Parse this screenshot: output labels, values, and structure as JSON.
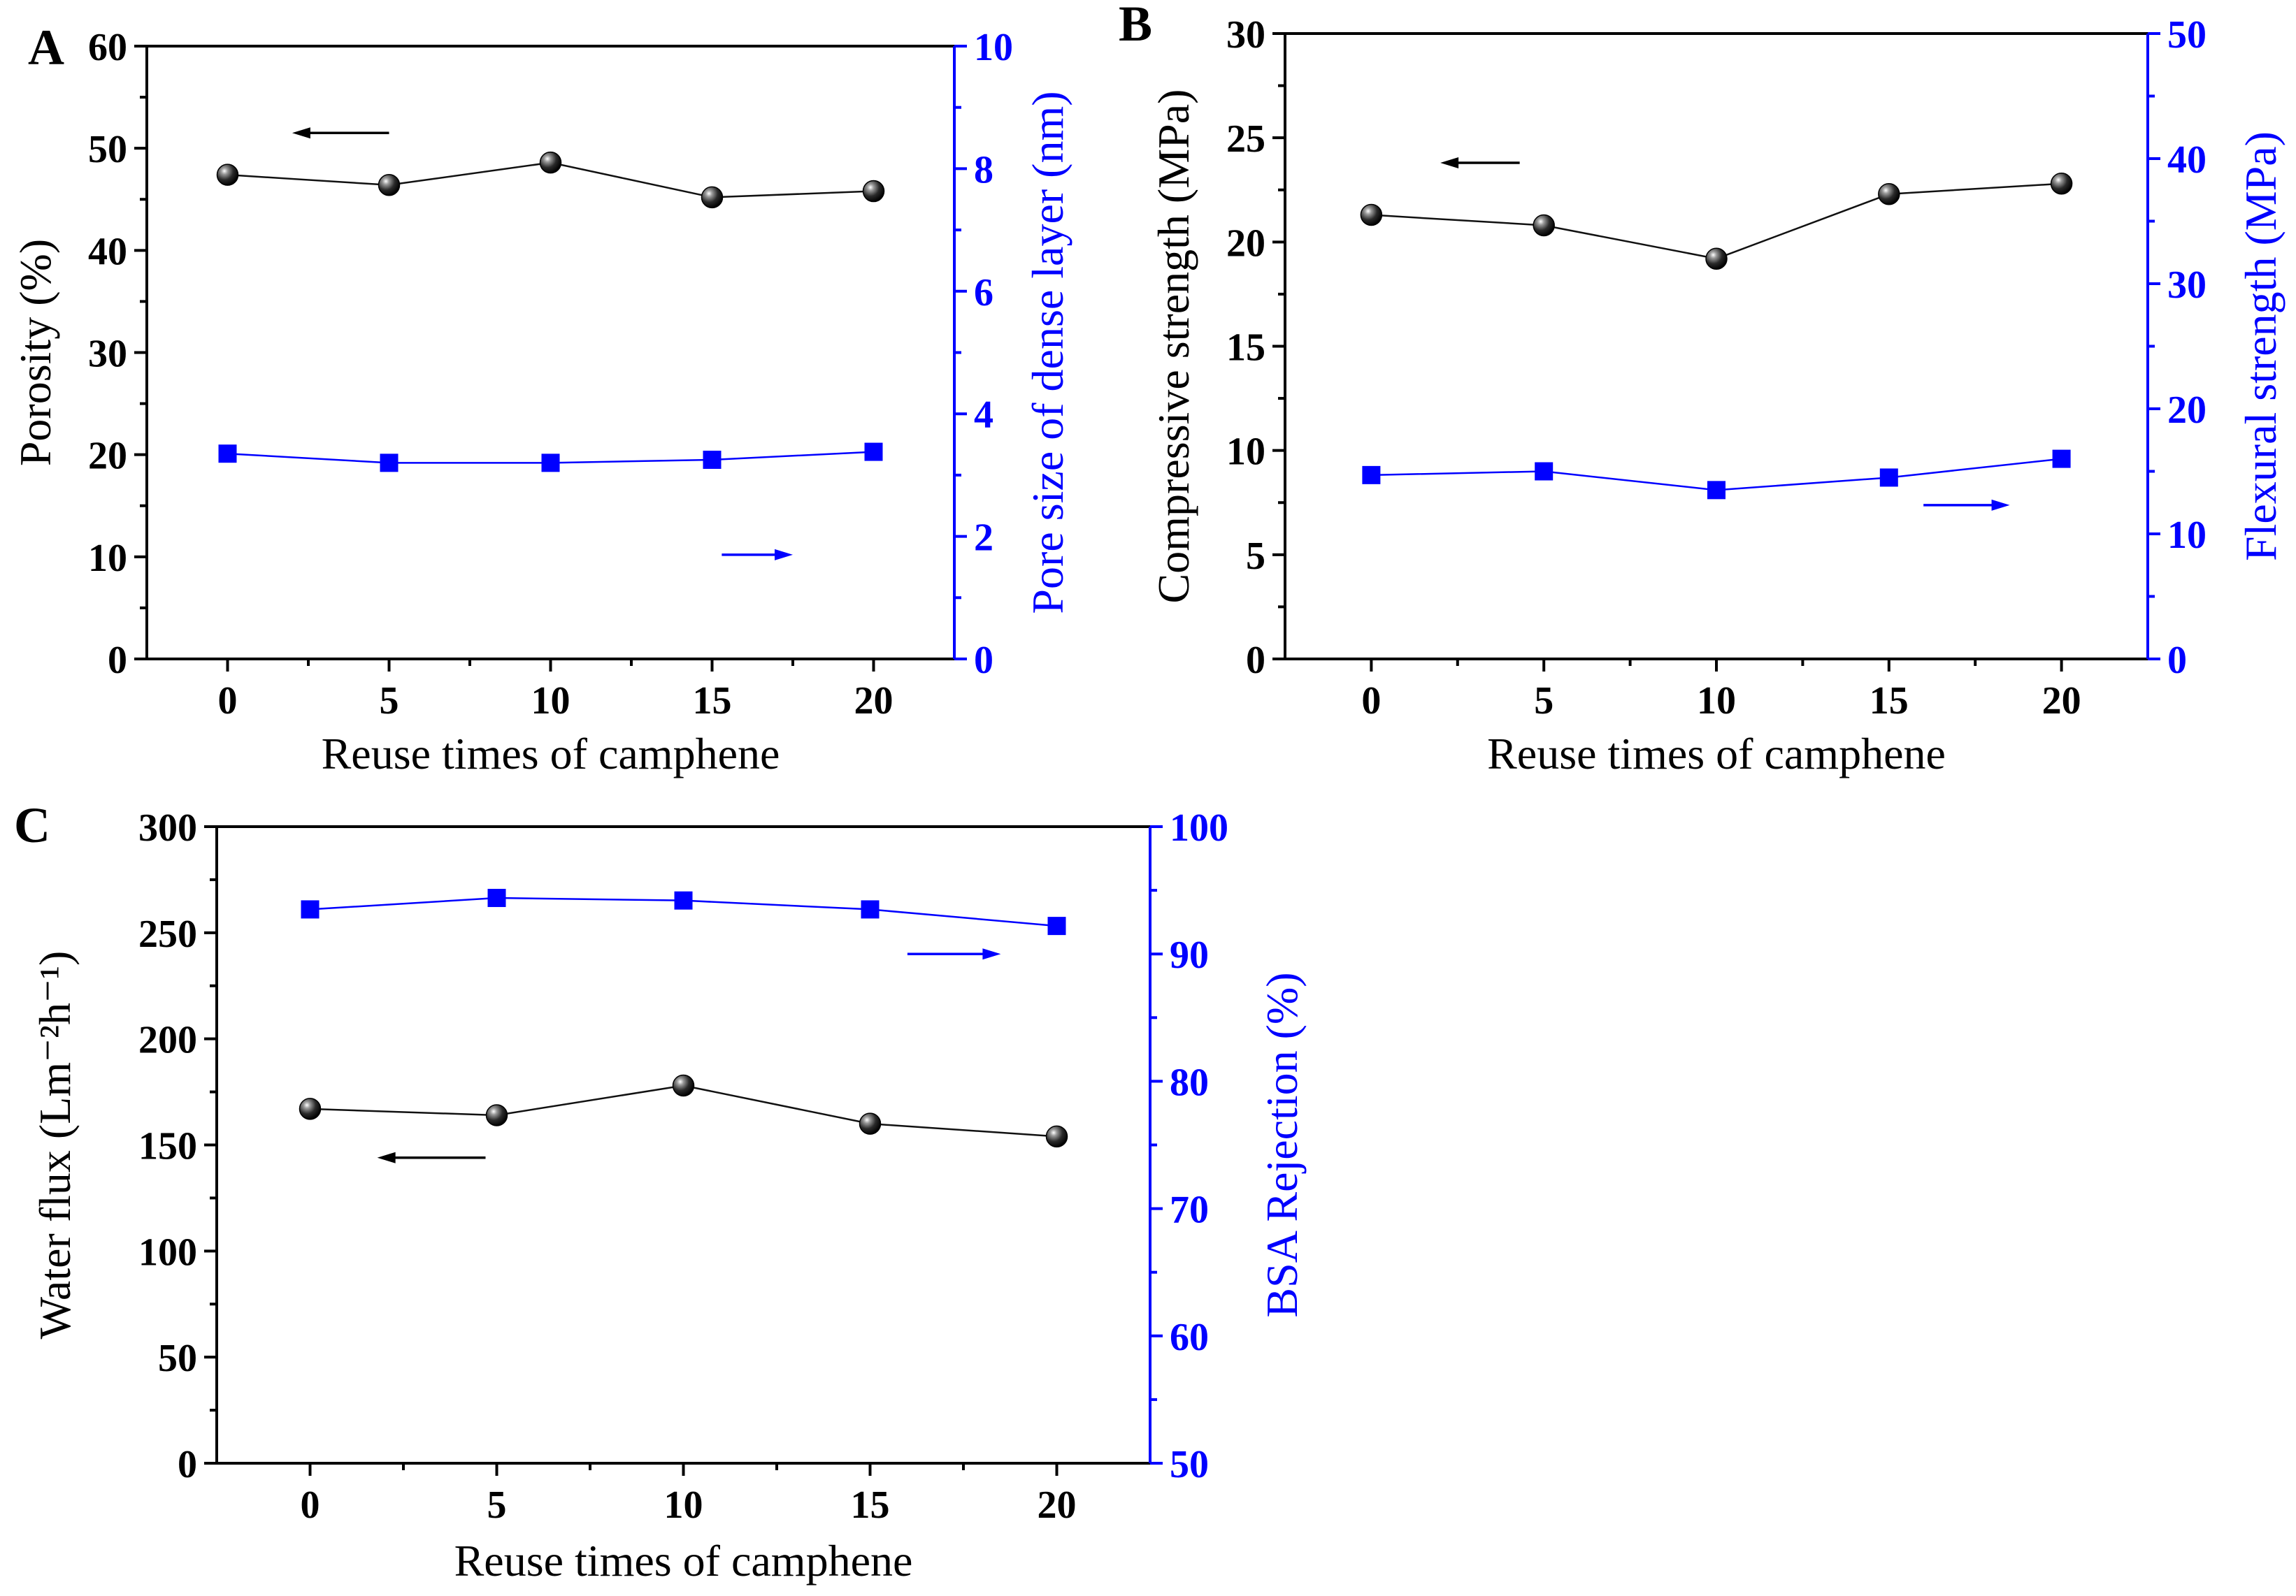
{
  "colors": {
    "left_axis": "#000000",
    "right_axis": "#0000ff",
    "marker_sphere": "#111111",
    "marker_square": "#0000ff"
  },
  "chart_data": [
    {
      "panel": "A",
      "type": "line",
      "xlabel": "Reuse times of camphene",
      "x": [
        0,
        5,
        10,
        15,
        20
      ],
      "xlim": [
        -2.5,
        22.5
      ],
      "xticks": [
        0,
        5,
        10,
        15,
        20
      ],
      "ylabel_left": "Porosity (%)",
      "ylim_left": [
        0,
        60
      ],
      "yticks_left": [
        0,
        10,
        20,
        30,
        40,
        50,
        60
      ],
      "ylabel_right": "Pore size of dense layer (nm)",
      "ylim_right": [
        0,
        10
      ],
      "yticks_right": [
        0,
        2,
        4,
        6,
        8,
        10
      ],
      "series": [
        {
          "axis": "left",
          "marker": "sphere",
          "color": "#111111",
          "values": [
            47.4,
            46.4,
            48.6,
            45.2,
            45.8
          ]
        },
        {
          "axis": "right",
          "marker": "square",
          "color": "#0000ff",
          "values": [
            3.35,
            3.2,
            3.2,
            3.25,
            3.38
          ]
        }
      ],
      "arrows": [
        {
          "direction": "left",
          "axis": "left",
          "x_from": 5,
          "x_to": 2,
          "y": 51.5
        },
        {
          "direction": "right",
          "axis": "right",
          "x_from": 15.3,
          "x_to": 17.5,
          "y": 1.7
        }
      ],
      "grid": false
    },
    {
      "panel": "B",
      "type": "line",
      "xlabel": "Reuse times of camphene",
      "x": [
        0,
        5,
        10,
        15,
        20
      ],
      "xlim": [
        -2.5,
        22.5
      ],
      "xticks": [
        0,
        5,
        10,
        15,
        20
      ],
      "ylabel_left": "Compressive strength (MPa)",
      "ylim_left": [
        0,
        30
      ],
      "yticks_left": [
        0,
        5,
        10,
        15,
        20,
        25,
        30
      ],
      "ylabel_right": "Flexural strength (MPa)",
      "ylim_right": [
        0,
        50
      ],
      "yticks_right": [
        0,
        10,
        20,
        30,
        40,
        50
      ],
      "series": [
        {
          "axis": "left",
          "marker": "sphere",
          "color": "#111111",
          "values": [
            21.3,
            20.8,
            19.2,
            22.3,
            22.8
          ]
        },
        {
          "axis": "right",
          "marker": "square",
          "color": "#0000ff",
          "values": [
            14.7,
            15.0,
            13.5,
            14.5,
            16.0
          ]
        }
      ],
      "arrows": [
        {
          "direction": "left",
          "axis": "left",
          "x_from": 4.3,
          "x_to": 2.0,
          "y": 23.8
        },
        {
          "direction": "right",
          "axis": "right",
          "x_from": 16.0,
          "x_to": 18.5,
          "y": 12.3
        }
      ],
      "grid": false
    },
    {
      "panel": "C",
      "type": "line",
      "xlabel": "Reuse times of camphene",
      "x": [
        0,
        5,
        10,
        15,
        20
      ],
      "xlim": [
        -2.5,
        22.5
      ],
      "xticks": [
        0,
        5,
        10,
        15,
        20
      ],
      "ylabel_left": "Water flux (Lm⁻²h⁻¹)",
      "ylim_left": [
        0,
        300
      ],
      "yticks_left": [
        0,
        50,
        100,
        150,
        200,
        250,
        300
      ],
      "ylabel_right": "BSA Rejection (%)",
      "ylim_right": [
        50,
        100
      ],
      "yticks_right": [
        50,
        60,
        70,
        80,
        90,
        100
      ],
      "series": [
        {
          "axis": "left",
          "marker": "sphere",
          "color": "#111111",
          "values": [
            167,
            164,
            178,
            160,
            154
          ]
        },
        {
          "axis": "right",
          "marker": "square",
          "color": "#0000ff",
          "values": [
            93.5,
            94.4,
            94.2,
            93.5,
            92.2
          ]
        }
      ],
      "arrows": [
        {
          "direction": "left",
          "axis": "left",
          "x_from": 4.7,
          "x_to": 1.8,
          "y": 144
        },
        {
          "direction": "right",
          "axis": "right",
          "x_from": 16.0,
          "x_to": 18.5,
          "y": 90
        }
      ],
      "grid": false
    }
  ]
}
